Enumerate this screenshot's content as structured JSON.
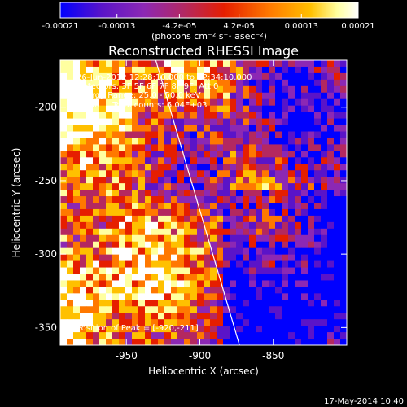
{
  "colorbar": {
    "ticks": [
      "-0.00021",
      "-0.00013",
      "-4.2e-05",
      "4.2e-05",
      "0.00013",
      "0.00021"
    ],
    "tick_values": [
      -0.00021,
      -0.00013,
      -4.2e-05,
      4.2e-05,
      0.00013,
      0.00021
    ],
    "unit_label": "(photons cm⁻² s⁻¹ asec⁻²)",
    "colors": [
      "#0000ff",
      "#5a14c8",
      "#8c28b4",
      "#b42860",
      "#e61e00",
      "#ff7800",
      "#ffc000",
      "#ffffa0",
      "#ffffff"
    ]
  },
  "chart_data": {
    "type": "heatmap",
    "title": "Reconstructed RHESSI Image",
    "xlabel": "Heliocentric X (arcsec)",
    "ylabel": "Heliocentric Y (arcsec)",
    "xlim": [
      -995,
      -800
    ],
    "ylim": [
      -362,
      -168
    ],
    "x_ticks": [
      -950,
      -900,
      -850
    ],
    "y_ticks": [
      -350,
      -300,
      -250,
      -200
    ],
    "x_tick_labels": [
      "-950",
      "-900",
      "-850"
    ],
    "y_tick_labels": [
      "-350",
      "-300",
      "-250",
      "-200"
    ],
    "value_range": [
      -0.00021,
      0.00021
    ],
    "limb_line": [
      [
        -930,
        -168
      ],
      [
        -873,
        -362
      ]
    ],
    "peak_position": [
      -920,
      -211
    ],
    "annotations": [
      "26-Jun-2012 12:28:10.000 to 12:34:10.000",
      "Detectors: 3F 5F 6F 7F 8F 9F, Att 0",
      "Energy Range: 25.0 - 50.0 keV",
      "Clean     Total counts: 6.04E+03"
    ],
    "peak_label": "Position of Peak = [-920,-211]"
  },
  "footer": {
    "timestamp": "17-May-2014 10:40"
  }
}
